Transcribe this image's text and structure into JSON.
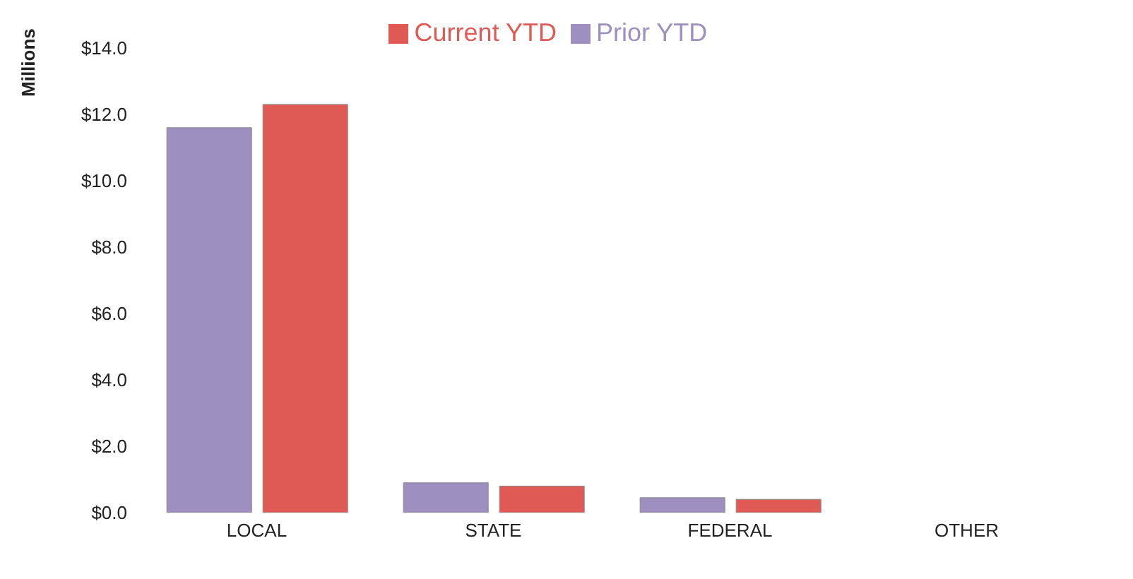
{
  "chart_data": {
    "type": "bar",
    "ylabel": "Millions",
    "categories": [
      "LOCAL",
      "STATE",
      "FEDERAL",
      "OTHER"
    ],
    "series": [
      {
        "name": "Prior YTD",
        "color": "#9d8fc0",
        "values": [
          11.6,
          0.9,
          0.45,
          0
        ]
      },
      {
        "name": "Current YTD",
        "color": "#e05a55",
        "values": [
          12.3,
          0.8,
          0.4,
          0
        ]
      }
    ],
    "ylim": [
      0,
      14
    ],
    "yticks": [
      {
        "value": 0,
        "label": "$0.0"
      },
      {
        "value": 2,
        "label": "$2.0"
      },
      {
        "value": 4,
        "label": "$4.0"
      },
      {
        "value": 6,
        "label": "$6.0"
      },
      {
        "value": 8,
        "label": "$8.0"
      },
      {
        "value": 10,
        "label": "$10.0"
      },
      {
        "value": 12,
        "label": "$12.0"
      },
      {
        "value": 14,
        "label": "$14.0"
      }
    ],
    "legend": "top"
  }
}
